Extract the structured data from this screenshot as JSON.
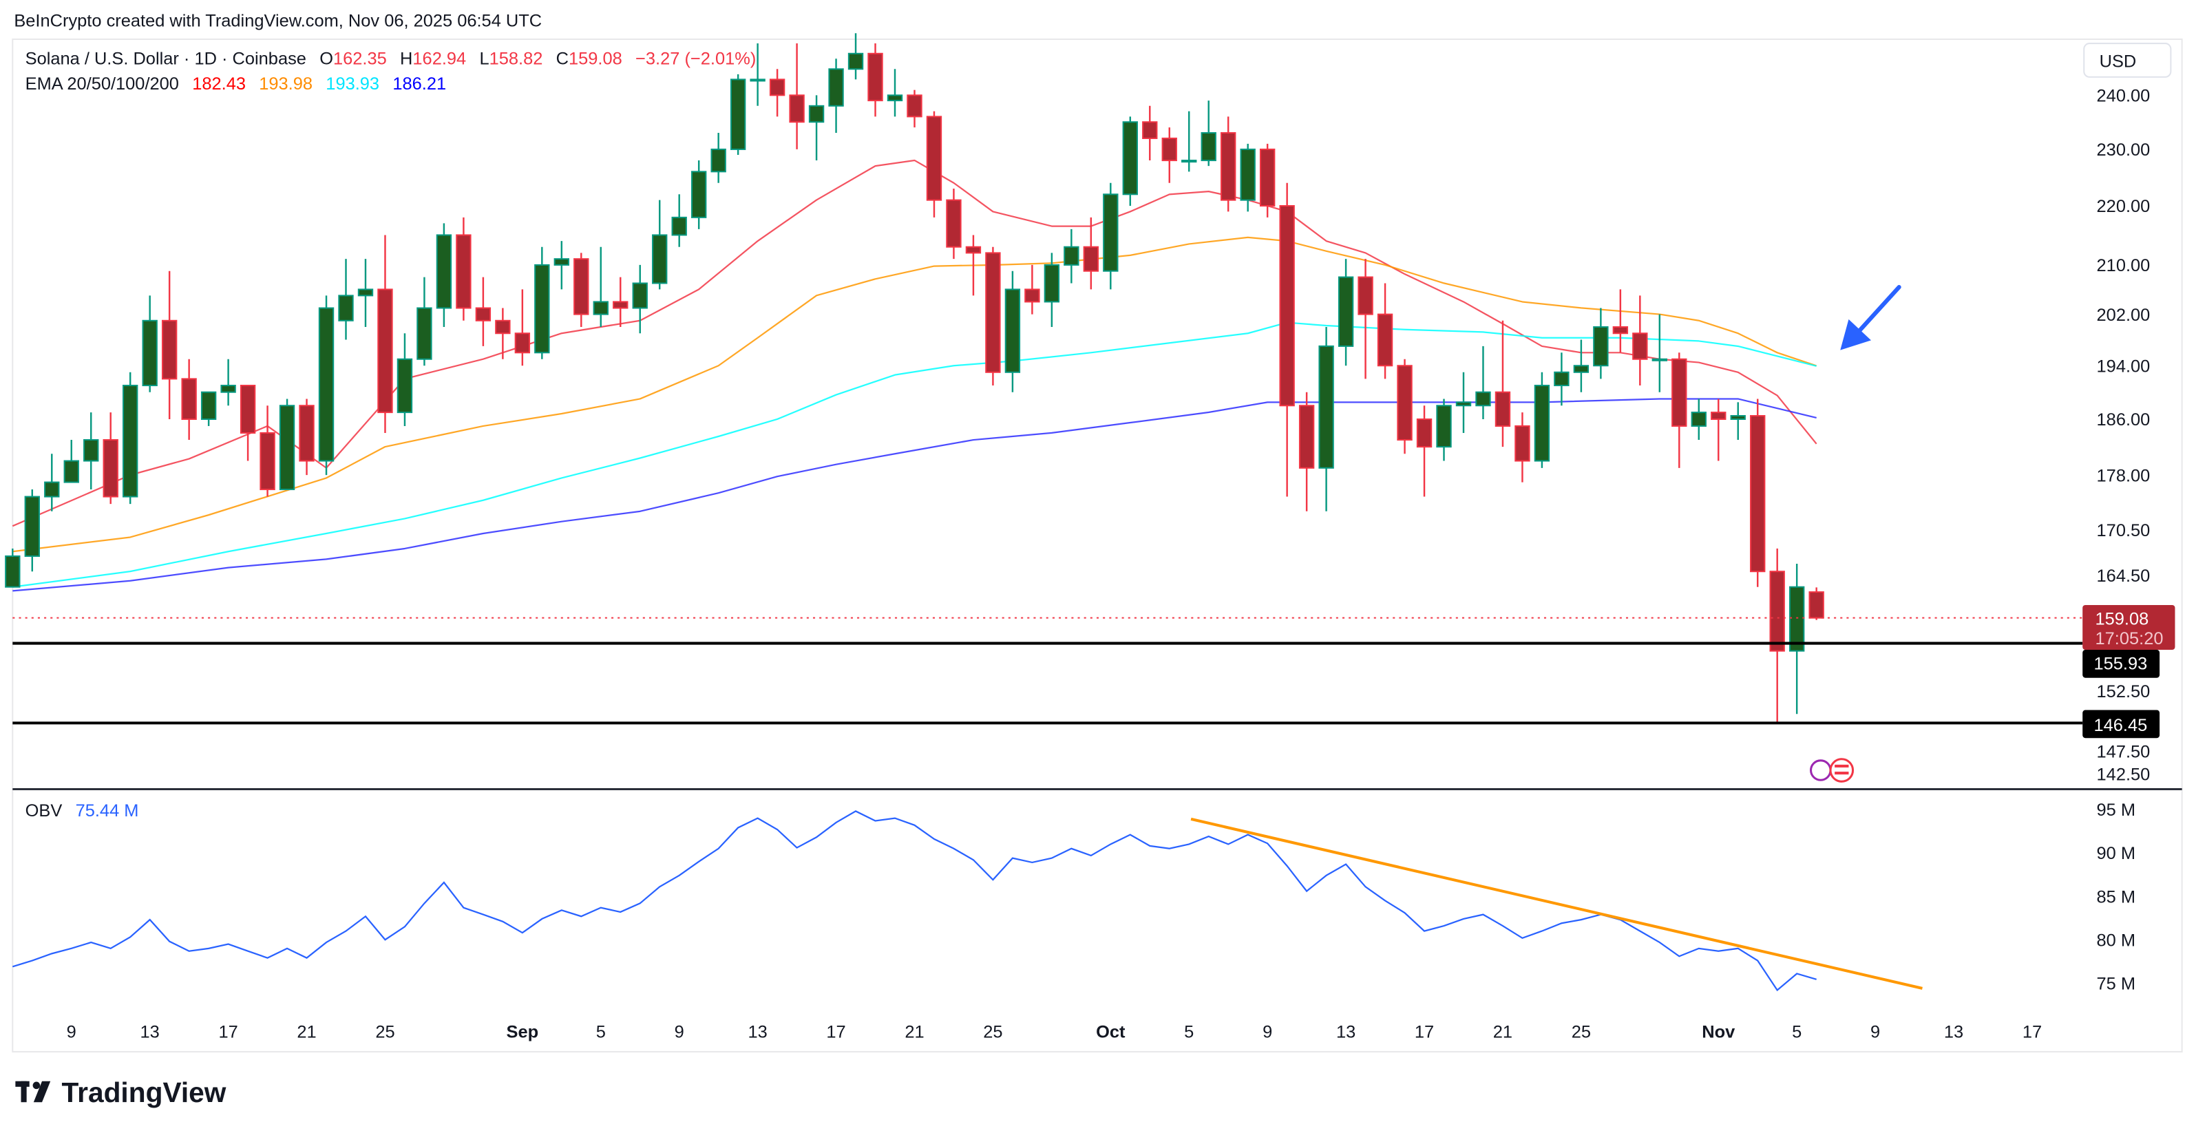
{
  "credit": "BeInCrypto created with TradingView.com, Nov 06, 2025 06:54 UTC",
  "legend": {
    "symbol": "Solana / U.S. Dollar · 1D · Coinbase",
    "o_label": "O",
    "o": "162.35",
    "h_label": "H",
    "h": "162.94",
    "l_label": "L",
    "l": "158.82",
    "c_label": "C",
    "c": "159.08",
    "change": "−3.27 (−2.01%)",
    "ema_label": "EMA 20/50/100/200",
    "ema20": "182.43",
    "ema50": "193.98",
    "ema100": "193.93",
    "ema200": "186.21"
  },
  "currency": "USD",
  "price_tag": {
    "price": "159.08",
    "countdown": "17:05:20"
  },
  "level_tags": [
    "155.93",
    "146.45"
  ],
  "obv_legend": {
    "label": "OBV",
    "value": "75.44 M"
  },
  "logo_text": "TradingView",
  "colors": {
    "up": "#089981",
    "up_fill": "#1b5e20",
    "down": "#f23645",
    "down_fill": "#b22833",
    "ema20": "#f23645",
    "ema50": "#ff9800",
    "ema100": "#00ffff",
    "ema200": "#2d2dff",
    "obv": "#2962ff",
    "trend": "#ff9800",
    "arrow": "#2962ff"
  },
  "chart_data": [
    {
      "type": "candlestick",
      "title": "Solana / U.S. Dollar · 1D · Coinbase",
      "scale": "log",
      "first_date": "2025-08-06",
      "ylabel": "USD",
      "yticks": [
        "240.00",
        "230.00",
        "220.00",
        "210.00",
        "202.00",
        "194.00",
        "186.00",
        "178.00",
        "170.50",
        "164.50",
        "152.50",
        "147.50",
        "142.50"
      ],
      "ytick_values": [
        240,
        230,
        220,
        210,
        202,
        194,
        186,
        178,
        170.5,
        164.5,
        152.5,
        147.5,
        142.5
      ],
      "xticks": [
        [
          "9",
          3
        ],
        [
          "13",
          7
        ],
        [
          "17",
          11
        ],
        [
          "21",
          15
        ],
        [
          "25",
          19
        ],
        [
          "Sep",
          26
        ],
        [
          "5",
          30
        ],
        [
          "9",
          34
        ],
        [
          "13",
          38
        ],
        [
          "17",
          42
        ],
        [
          "21",
          46
        ],
        [
          "25",
          50
        ],
        [
          "Oct",
          56
        ],
        [
          "5",
          60
        ],
        [
          "9",
          64
        ],
        [
          "13",
          68
        ],
        [
          "17",
          72
        ],
        [
          "21",
          76
        ],
        [
          "25",
          80
        ],
        [
          "Nov",
          87
        ],
        [
          "5",
          91
        ],
        [
          "9",
          95
        ],
        [
          "13",
          99
        ],
        [
          "17",
          103
        ]
      ],
      "ohlc": [
        [
          163,
          168,
          163,
          167
        ],
        [
          167,
          176,
          165,
          175
        ],
        [
          175,
          181,
          173,
          177
        ],
        [
          177,
          183,
          177,
          180
        ],
        [
          180,
          187,
          176,
          183
        ],
        [
          183,
          187,
          174,
          175
        ],
        [
          175,
          193,
          174,
          191
        ],
        [
          191,
          205,
          190,
          201
        ],
        [
          201,
          209,
          186,
          192
        ],
        [
          192,
          195,
          183,
          186
        ],
        [
          186,
          190,
          185,
          190
        ],
        [
          190,
          195,
          188,
          191
        ],
        [
          191,
          191,
          180,
          184
        ],
        [
          184,
          188,
          175,
          176
        ],
        [
          176,
          189,
          176,
          188
        ],
        [
          188,
          189,
          178,
          180
        ],
        [
          180,
          205,
          178,
          203
        ],
        [
          201,
          211,
          198,
          205
        ],
        [
          205,
          211,
          200,
          206
        ],
        [
          206,
          215,
          184,
          187
        ],
        [
          187,
          199,
          185,
          195
        ],
        [
          195,
          208,
          194,
          203
        ],
        [
          203,
          217,
          200,
          215
        ],
        [
          215,
          218,
          201,
          203
        ],
        [
          203,
          208,
          197,
          201
        ],
        [
          201,
          203,
          195,
          199
        ],
        [
          199,
          206,
          194,
          196
        ],
        [
          196,
          213,
          195,
          210
        ],
        [
          210,
          214,
          206,
          211
        ],
        [
          211,
          212,
          200,
          202
        ],
        [
          202,
          213,
          200,
          204
        ],
        [
          204,
          208,
          200,
          203
        ],
        [
          203,
          210,
          199,
          207
        ],
        [
          207,
          221,
          206,
          215
        ],
        [
          215,
          222,
          213,
          218
        ],
        [
          218,
          228,
          216,
          226
        ],
        [
          226,
          233,
          224,
          230
        ],
        [
          230,
          244,
          229,
          243
        ],
        [
          243,
          250,
          238,
          243
        ],
        [
          243,
          245,
          236,
          240
        ],
        [
          240,
          250,
          230,
          235
        ],
        [
          235,
          240,
          228,
          238
        ],
        [
          238,
          247,
          233,
          245
        ],
        [
          245,
          252,
          243,
          248
        ],
        [
          248,
          250,
          236,
          239
        ],
        [
          239,
          245,
          236,
          240
        ],
        [
          240,
          241,
          234,
          236
        ],
        [
          236,
          237,
          218,
          221
        ],
        [
          221,
          223,
          211,
          213
        ],
        [
          213,
          215,
          205,
          212
        ],
        [
          212,
          213,
          191,
          193
        ],
        [
          193,
          209,
          190,
          206
        ],
        [
          206,
          210,
          202,
          204
        ],
        [
          204,
          212,
          200,
          210
        ],
        [
          210,
          216,
          207,
          213
        ],
        [
          213,
          218,
          206,
          209
        ],
        [
          209,
          224,
          206,
          222
        ],
        [
          222,
          236,
          220,
          235
        ],
        [
          235,
          238,
          228,
          232
        ],
        [
          232,
          234,
          224,
          228
        ],
        [
          228,
          237,
          226,
          228
        ],
        [
          228,
          239,
          227,
          233
        ],
        [
          233,
          236,
          219,
          221
        ],
        [
          221,
          231,
          219,
          230
        ],
        [
          230,
          231,
          218,
          220
        ],
        [
          220,
          224,
          175,
          188
        ],
        [
          188,
          190,
          173,
          179
        ],
        [
          179,
          200,
          173,
          197
        ],
        [
          197,
          211,
          194,
          208
        ],
        [
          208,
          211,
          192,
          202
        ],
        [
          202,
          207,
          192,
          194
        ],
        [
          194,
          195,
          181,
          183
        ],
        [
          186,
          188,
          175,
          182
        ],
        [
          182,
          189,
          180,
          188
        ],
        [
          188,
          193,
          184,
          188.5
        ],
        [
          188,
          197,
          186,
          190
        ],
        [
          190,
          201,
          182,
          185
        ],
        [
          185,
          187,
          177,
          180
        ],
        [
          180,
          193,
          179,
          191
        ],
        [
          191,
          196,
          188,
          193
        ],
        [
          193,
          198,
          190,
          194
        ],
        [
          194,
          203,
          192,
          200
        ],
        [
          200,
          206,
          196,
          199
        ],
        [
          199,
          205,
          191,
          195
        ],
        [
          195,
          202,
          190,
          195
        ],
        [
          195,
          196,
          179,
          185
        ],
        [
          185,
          189,
          183,
          187
        ],
        [
          187,
          189,
          180,
          186
        ],
        [
          186,
          188.5,
          183,
          186.5
        ],
        [
          186.5,
          189,
          163,
          165
        ],
        [
          165,
          168,
          146.45,
          155
        ],
        [
          155,
          166,
          147.5,
          163
        ],
        [
          162.35,
          162.94,
          158.82,
          159.08
        ]
      ],
      "ema": {
        "ema20": [
          [
            0,
            171
          ],
          [
            6,
            178
          ],
          [
            9,
            180.3
          ],
          [
            13,
            185
          ],
          [
            16,
            179
          ],
          [
            20,
            192
          ],
          [
            24,
            195
          ],
          [
            28,
            199
          ],
          [
            32,
            201
          ],
          [
            35,
            206
          ],
          [
            38,
            214
          ],
          [
            41,
            221
          ],
          [
            44,
            227
          ],
          [
            46,
            228
          ],
          [
            48,
            224
          ],
          [
            50,
            219
          ],
          [
            53,
            216.5
          ],
          [
            55,
            216.5
          ],
          [
            57,
            219
          ],
          [
            59,
            222
          ],
          [
            61,
            222.5
          ],
          [
            63,
            221
          ],
          [
            65,
            219
          ],
          [
            67,
            214
          ],
          [
            69,
            212
          ],
          [
            71,
            208.5
          ],
          [
            74,
            204
          ],
          [
            76,
            200.5
          ],
          [
            78,
            197
          ],
          [
            80,
            196
          ],
          [
            82,
            196
          ],
          [
            84,
            195
          ],
          [
            86,
            194.5
          ],
          [
            88,
            193
          ],
          [
            90,
            189.5
          ],
          [
            92,
            182.43
          ]
        ],
        "ema50": [
          [
            0,
            167.6
          ],
          [
            6,
            169.5
          ],
          [
            10,
            172.5
          ],
          [
            16,
            177.6
          ],
          [
            19,
            182
          ],
          [
            24,
            185
          ],
          [
            28,
            186.8
          ],
          [
            32,
            189
          ],
          [
            36,
            194
          ],
          [
            38,
            198.3
          ],
          [
            41,
            205
          ],
          [
            44,
            207.7
          ],
          [
            47,
            209.8
          ],
          [
            50,
            210
          ],
          [
            53,
            210.3
          ],
          [
            57,
            211.6
          ],
          [
            60,
            213.5
          ],
          [
            63,
            214.6
          ],
          [
            65,
            214
          ],
          [
            67,
            212.3
          ],
          [
            70,
            210
          ],
          [
            73,
            207
          ],
          [
            77,
            204
          ],
          [
            80,
            203
          ],
          [
            84,
            202
          ],
          [
            86,
            201
          ],
          [
            88,
            199
          ],
          [
            90,
            196
          ],
          [
            92,
            193.98
          ]
        ],
        "ema100": [
          [
            0,
            163
          ],
          [
            6,
            165
          ],
          [
            11,
            167.6
          ],
          [
            16,
            170
          ],
          [
            20,
            172
          ],
          [
            24,
            174.5
          ],
          [
            28,
            177.6
          ],
          [
            32,
            180.4
          ],
          [
            36,
            183.5
          ],
          [
            39,
            186
          ],
          [
            42,
            189.6
          ],
          [
            45,
            192.6
          ],
          [
            48,
            194
          ],
          [
            51,
            194.7
          ],
          [
            55,
            196
          ],
          [
            59,
            197.5
          ],
          [
            63,
            199
          ],
          [
            65,
            200.7
          ],
          [
            67,
            200.2
          ],
          [
            71,
            199.6
          ],
          [
            75,
            199.2
          ],
          [
            78,
            198.3
          ],
          [
            82,
            198.3
          ],
          [
            86,
            197.8
          ],
          [
            88,
            197
          ],
          [
            92,
            193.93
          ]
        ],
        "ema200": [
          [
            0,
            162.5
          ],
          [
            6,
            163.8
          ],
          [
            11,
            165.5
          ],
          [
            16,
            166.6
          ],
          [
            20,
            168
          ],
          [
            24,
            170
          ],
          [
            28,
            171.6
          ],
          [
            32,
            173
          ],
          [
            36,
            175.5
          ],
          [
            39,
            177.8
          ],
          [
            42,
            179.5
          ],
          [
            45,
            181
          ],
          [
            49,
            183
          ],
          [
            53,
            184
          ],
          [
            57,
            185.5
          ],
          [
            61,
            187
          ],
          [
            64,
            188.5
          ],
          [
            67,
            188.5
          ],
          [
            71,
            188.5
          ],
          [
            78,
            188.5
          ],
          [
            84,
            189
          ],
          [
            88,
            189
          ],
          [
            92,
            186.21
          ]
        ]
      },
      "horizontal_levels": [
        155.93,
        146.45
      ],
      "last_price": 159.08,
      "annotation": "blue arrow pointing at EMA 50/100 convergence"
    },
    {
      "type": "line",
      "title": "OBV",
      "ylabel": "OBV (M)",
      "yticks": [
        "95 M",
        "90 M",
        "85 M",
        "80 M",
        "75 M"
      ],
      "ytick_values": [
        95,
        90,
        85,
        80,
        75
      ],
      "values": [
        76.9,
        77.6,
        78.4,
        79.0,
        79.7,
        79.0,
        80.3,
        82.3,
        79.8,
        78.7,
        79.0,
        79.5,
        78.7,
        77.9,
        79.0,
        77.9,
        79.7,
        81.0,
        82.7,
        80.0,
        81.5,
        84.2,
        86.6,
        83.7,
        82.9,
        82.1,
        80.8,
        82.4,
        83.4,
        82.7,
        83.7,
        83.2,
        84.2,
        86.1,
        87.4,
        89.0,
        90.5,
        92.9,
        94.0,
        92.7,
        90.6,
        91.8,
        93.5,
        94.8,
        93.7,
        94.0,
        93.2,
        91.6,
        90.5,
        89.2,
        86.9,
        89.4,
        88.9,
        89.4,
        90.5,
        89.7,
        91.0,
        92.1,
        90.8,
        90.5,
        91.0,
        91.9,
        91.0,
        92.1,
        91.1,
        88.5,
        85.6,
        87.4,
        88.7,
        86.1,
        84.5,
        83.1,
        81.0,
        81.6,
        82.4,
        82.9,
        81.6,
        80.2,
        81.0,
        81.9,
        82.3,
        82.9,
        82.3,
        81.0,
        79.7,
        78.1,
        79.0,
        78.7,
        79.0,
        77.6,
        74.2,
        76.1,
        75.44
      ],
      "trendline": [
        [
          60.1,
          93.9
        ],
        [
          97.4,
          74.4
        ]
      ]
    }
  ]
}
